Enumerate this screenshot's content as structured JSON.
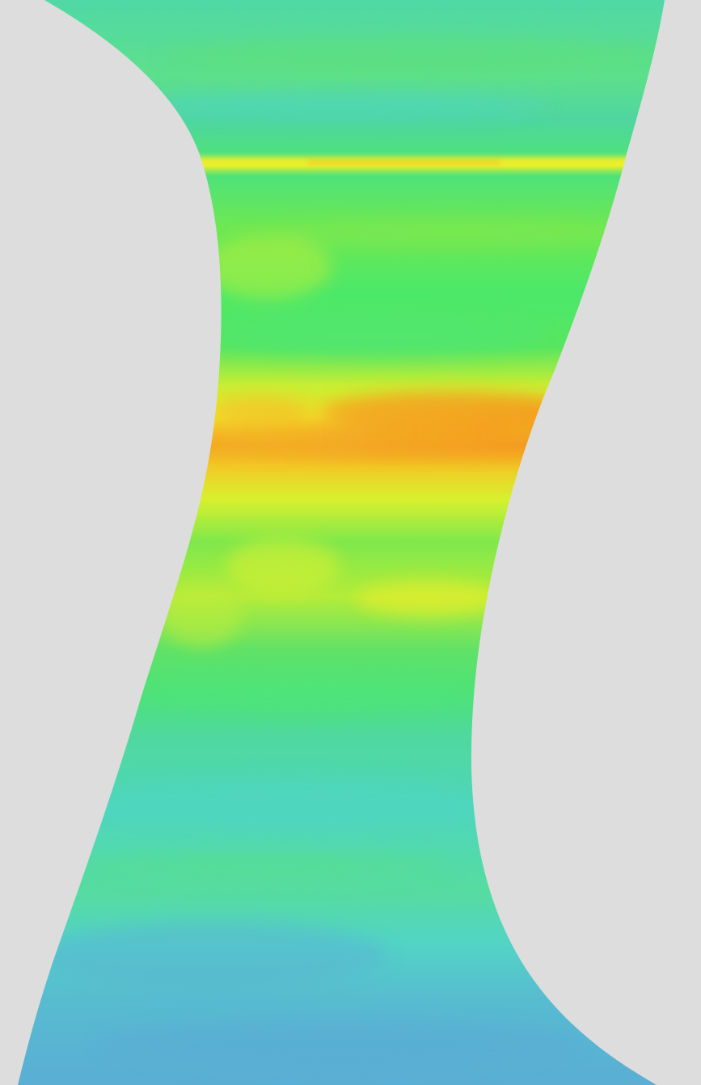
{
  "colors": {
    "background": "#dddddd",
    "field_low": "#5aaed2",
    "field_cyan": "#4fd6c8",
    "field_teal": "#52d6a8",
    "field_green": "#4ee87a",
    "field_yellow_green": "#a8ee44",
    "field_yellow": "#f0f028",
    "field_orange": "#f5a020"
  },
  "icons": [
    "colormapped-surface-region"
  ]
}
